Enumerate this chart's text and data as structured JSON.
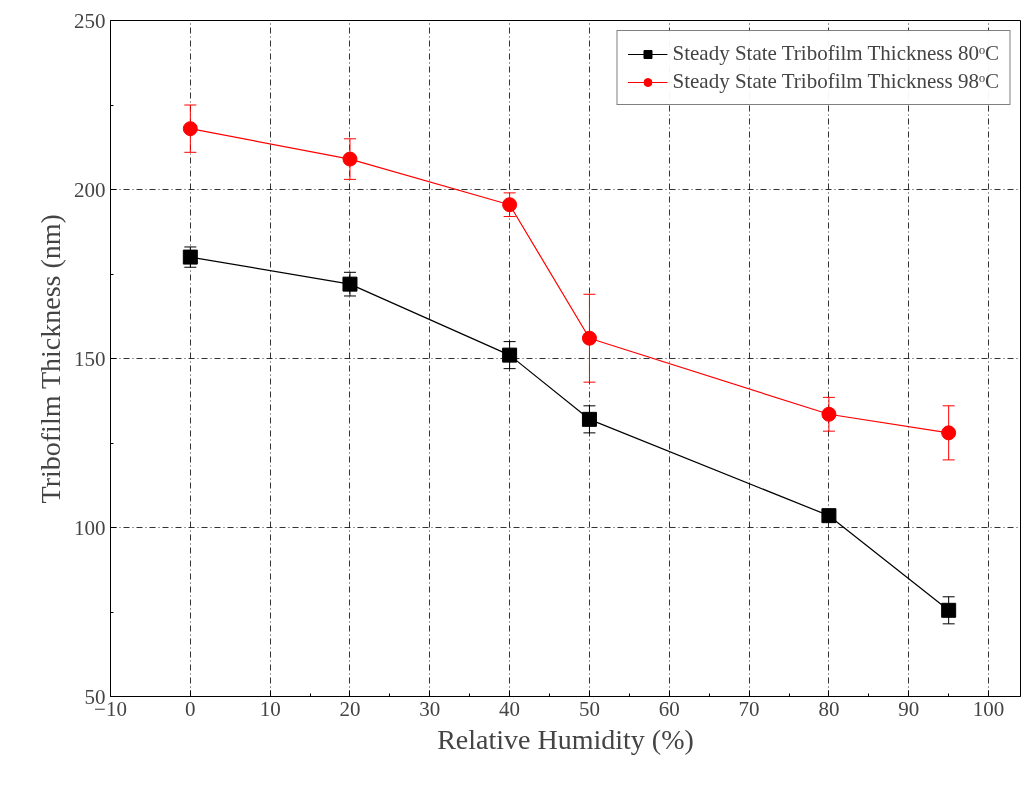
{
  "chart_data": {
    "type": "line",
    "xlabel": "Relative Humidity (%)",
    "ylabel": "Tribofilm Thickness (nm)",
    "x": [
      0,
      20,
      40,
      50,
      80,
      95
    ],
    "series": [
      {
        "name": "Steady State Tribofilm Thickness 80ᵒC",
        "color": "#000000",
        "marker": "square",
        "values": [
          180,
          172,
          151,
          132,
          103.5,
          75.5
        ],
        "errors": [
          3,
          3.5,
          4,
          4,
          1,
          4
        ]
      },
      {
        "name": "Steady State Tribofilm Thickness 98ᵒC",
        "color": "#ff0000",
        "marker": "circle",
        "values": [
          218,
          209,
          195.5,
          156,
          133.5,
          128
        ],
        "errors": [
          7,
          6,
          3.5,
          13,
          5,
          8
        ]
      }
    ],
    "xlim": [
      -10,
      104
    ],
    "ylim": [
      50,
      250
    ],
    "xticks": [
      -10,
      0,
      10,
      20,
      30,
      40,
      50,
      60,
      70,
      80,
      90,
      100
    ],
    "yticks": [
      50,
      100,
      150,
      200,
      250
    ],
    "grid": true,
    "legend": "top right",
    "line_style": "solid"
  }
}
